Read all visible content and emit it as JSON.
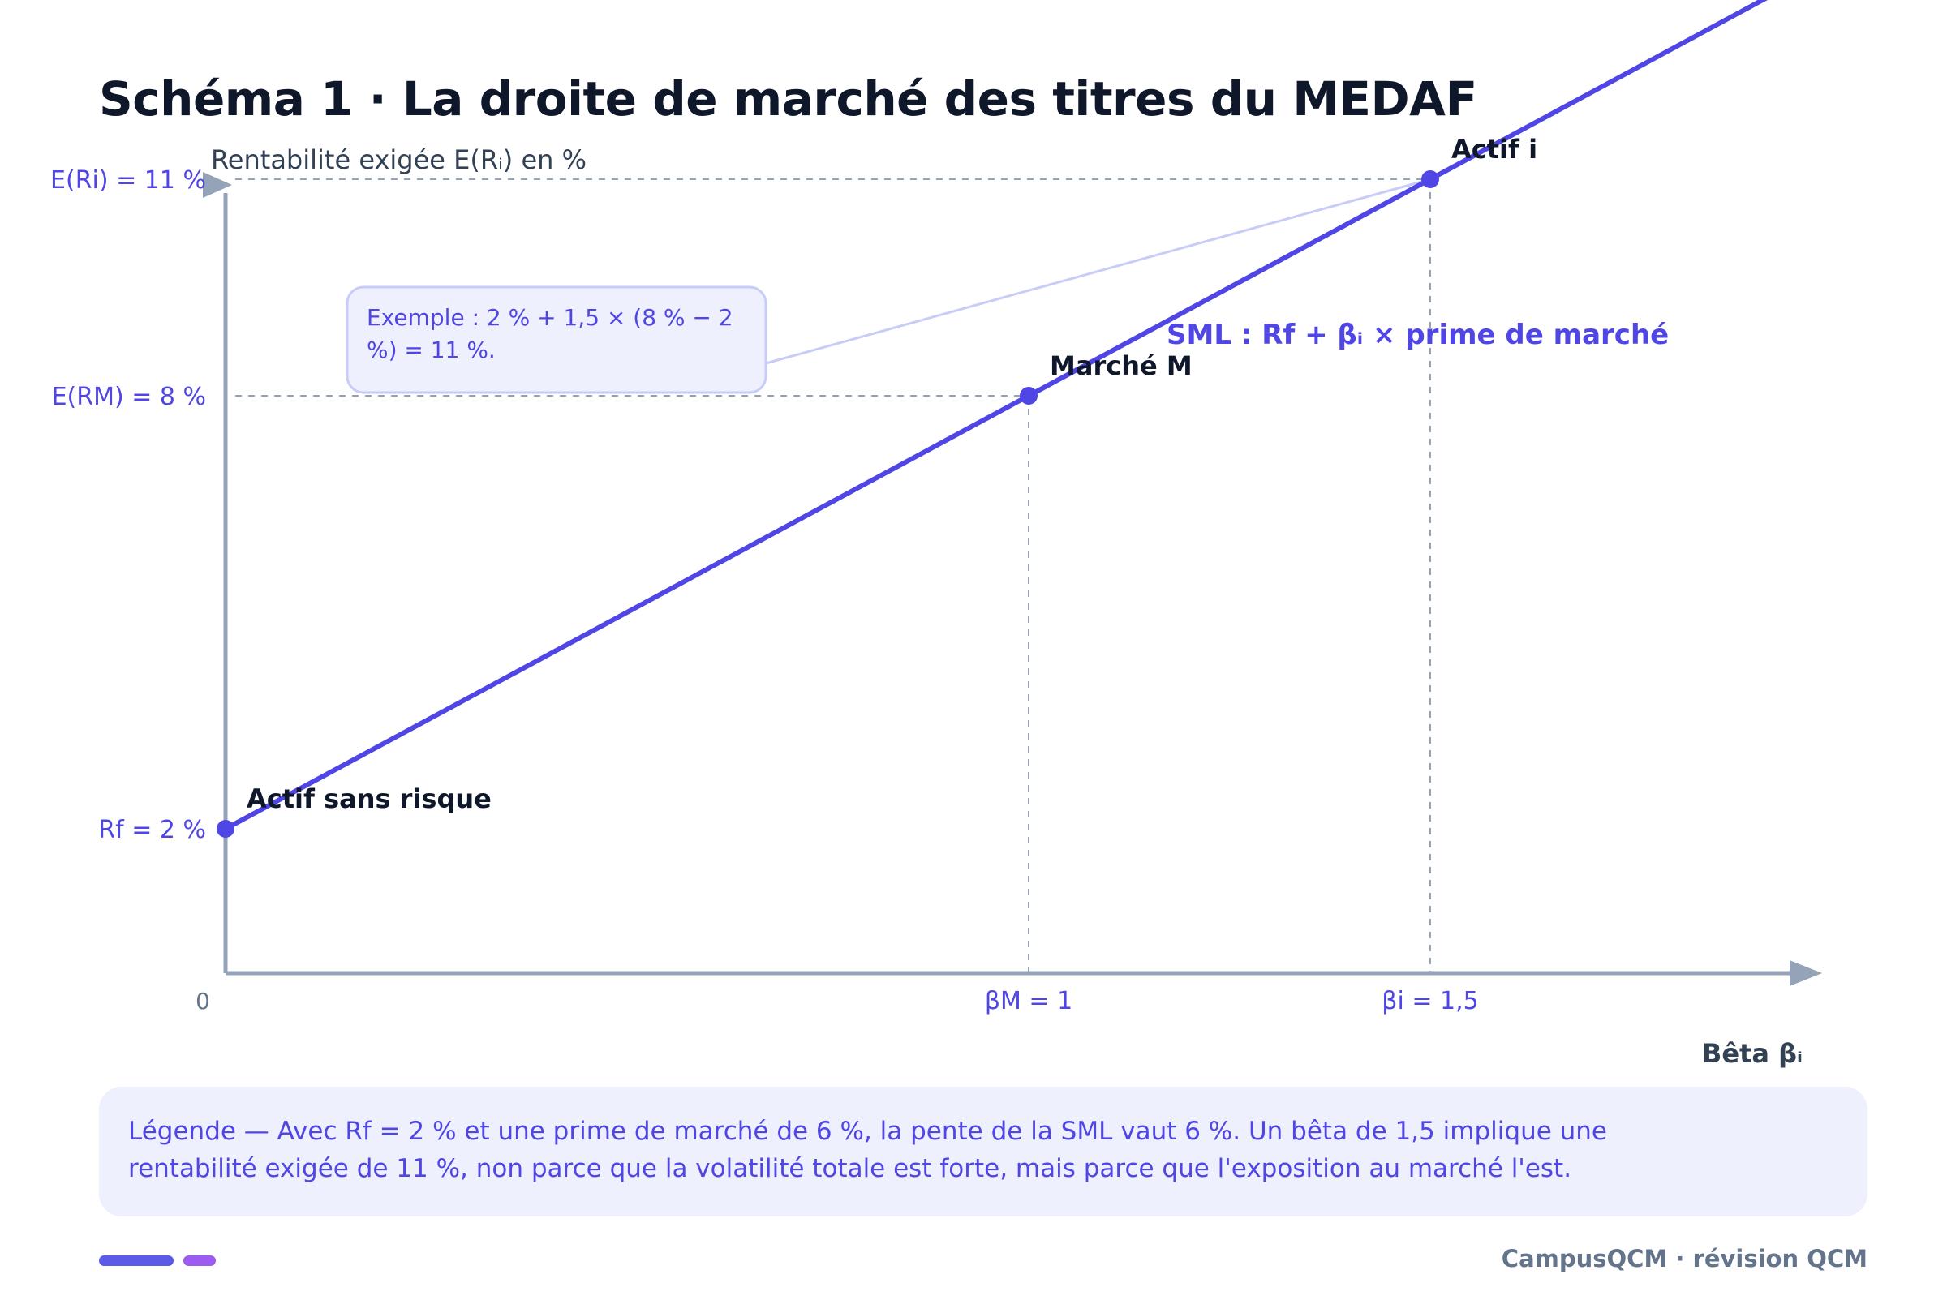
{
  "title": "Schéma 1 · La droite de marché des titres du MEDAF",
  "colors": {
    "accent": "#4f46e5",
    "axis": "#94a3b8",
    "dark": "#0f172a",
    "grid": "#94a3b8",
    "annotation_bg": "#eef0fd"
  },
  "chart_data": {
    "type": "line",
    "title": "Schéma 1 · La droite de marché des titres du MEDAF",
    "xlabel": "Bêta βᵢ",
    "ylabel": "Rentabilité exigée E(Rᵢ) en %",
    "x_origin_label": "0",
    "xlim": [
      0,
      2
    ],
    "ylim": [
      0,
      13.5
    ],
    "grid": false,
    "series": [
      {
        "name": "SML : Rf + βᵢ × prime de marché",
        "x": [
          0,
          2
        ],
        "y": [
          2,
          14
        ]
      }
    ],
    "points": [
      {
        "label": "Actif sans risque",
        "x": 0,
        "y": 2
      },
      {
        "label": "Marché M",
        "x": 1,
        "y": 8
      },
      {
        "label": "Actif i",
        "x": 1.5,
        "y": 11
      }
    ],
    "y_ticks": [
      {
        "value": 2,
        "label": "Rf = 2 %"
      },
      {
        "value": 8,
        "label": "E(RM) = 8 %"
      },
      {
        "value": 11,
        "label": "E(Ri) = 11 %"
      }
    ],
    "x_ticks": [
      {
        "value": 1,
        "label": "βM = 1"
      },
      {
        "value": 1.5,
        "label": "βi = 1,5"
      }
    ],
    "annotation": "Exemple : 2 % + 1,5 × (8 % − 2 %) = 11 %.",
    "annotation_lines": [
      "Exemple : 2 % + 1,5 × (8 % − 2",
      "%) = 11 %."
    ]
  },
  "legend_text": "Légende — Avec Rf = 2 % et une prime de marché de 6 %, la pente de la SML vaut 6 %. Un bêta de 1,5 implique une rentabilité exigée de 11 %, non parce que la volatilité totale est forte, mais parce que l'exposition au marché l'est.",
  "footer": "CampusQCM · révision QCM"
}
